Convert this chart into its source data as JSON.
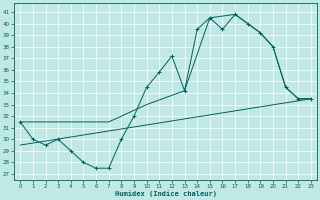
{
  "xlabel": "Humidex (Indice chaleur)",
  "xlim": [
    -0.5,
    23.5
  ],
  "ylim": [
    26.5,
    41.8
  ],
  "yticks": [
    27,
    28,
    29,
    30,
    31,
    32,
    33,
    34,
    35,
    36,
    37,
    38,
    39,
    40,
    41
  ],
  "xticks": [
    0,
    1,
    2,
    3,
    4,
    5,
    6,
    7,
    8,
    9,
    10,
    11,
    12,
    13,
    14,
    15,
    16,
    17,
    18,
    19,
    20,
    21,
    22,
    23
  ],
  "bg_color": "#c0e8e4",
  "grid_color": "#ffffff",
  "line_color": "#006060",
  "curve1_x": [
    0,
    1,
    2,
    3,
    4,
    5,
    6,
    7,
    8,
    9,
    10,
    11,
    12,
    13,
    14,
    15,
    16,
    17,
    18,
    19,
    20,
    21,
    22,
    23
  ],
  "curve1_y": [
    31.5,
    30.0,
    29.5,
    30.0,
    29.0,
    28.0,
    27.5,
    27.5,
    30.0,
    32.0,
    34.5,
    35.8,
    37.2,
    34.2,
    39.5,
    40.5,
    39.5,
    40.8,
    40.0,
    39.2,
    38.0,
    34.5,
    33.5,
    33.5
  ],
  "curve2_x": [
    0,
    7,
    10,
    13,
    15,
    17,
    19,
    20,
    21,
    22,
    23
  ],
  "curve2_y": [
    31.5,
    31.5,
    33.0,
    34.2,
    40.5,
    40.8,
    39.2,
    38.0,
    34.5,
    33.5,
    33.5
  ],
  "curve3_x": [
    0,
    23
  ],
  "curve3_y": [
    29.5,
    33.5
  ]
}
